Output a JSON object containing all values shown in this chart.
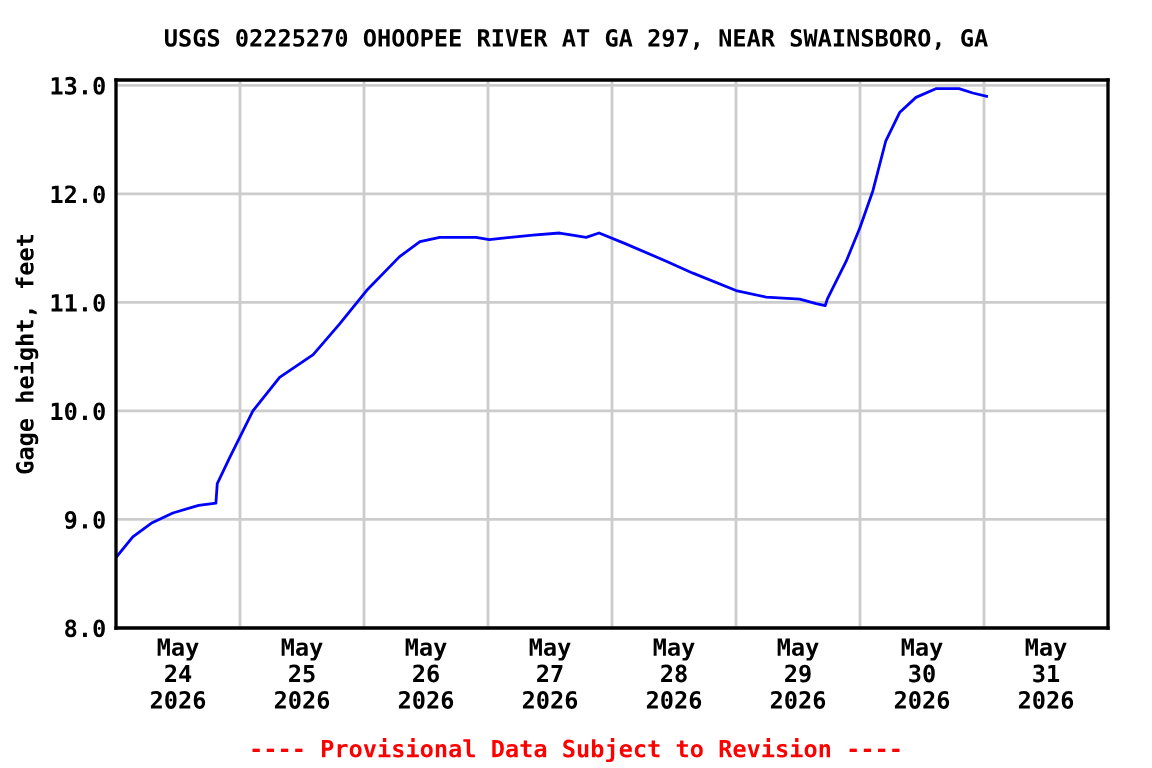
{
  "chart_data": {
    "type": "line",
    "title": "USGS 02225270 OHOOPEE RIVER AT GA 297, NEAR SWAINSBORO, GA",
    "ylabel": "Gage height, feet",
    "annotations": [
      "---- Provisional Data Subject to Revision ----"
    ],
    "x": [
      "2026-05-24T00:00",
      "2026-05-24T03:15",
      "2026-05-24T07:00",
      "2026-05-24T11:00",
      "2026-05-24T16:00",
      "2026-05-24T19:20",
      "2026-05-24T19:36",
      "2026-05-24T22:00",
      "2026-05-25T02:30",
      "2026-05-25T07:40",
      "2026-05-25T14:10",
      "2026-05-25T19:15",
      "2026-05-26T00:30",
      "2026-05-26T06:50",
      "2026-05-26T10:50",
      "2026-05-26T14:40",
      "2026-05-26T21:40",
      "2026-05-27T00:15",
      "2026-05-27T08:40",
      "2026-05-27T13:50",
      "2026-05-27T16:20",
      "2026-05-27T19:00",
      "2026-05-27T21:30",
      "2026-05-28T02:40",
      "2026-05-28T10:30",
      "2026-05-28T15:40",
      "2026-05-29T00:00",
      "2026-05-29T05:50",
      "2026-05-29T12:20",
      "2026-05-29T15:30",
      "2026-05-29T17:15",
      "2026-05-29T17:40",
      "2026-05-29T21:20",
      "2026-05-30T00:00",
      "2026-05-30T02:30",
      "2026-05-30T05:00",
      "2026-05-30T07:40",
      "2026-05-30T10:50",
      "2026-05-30T14:40",
      "2026-05-30T19:10",
      "2026-05-30T21:50",
      "2026-05-31T00:30"
    ],
    "series": [
      {
        "color": "#0000ff",
        "values": [
          8.65,
          8.84,
          8.97,
          9.06,
          9.13,
          9.15,
          9.33,
          9.57,
          10.0,
          10.31,
          10.52,
          10.8,
          11.11,
          11.42,
          11.56,
          11.6,
          11.6,
          11.58,
          11.62,
          11.64,
          11.62,
          11.6,
          11.64,
          11.54,
          11.38,
          11.27,
          11.11,
          11.05,
          11.03,
          10.99,
          10.97,
          11.03,
          11.38,
          11.69,
          12.03,
          12.49,
          12.75,
          12.89,
          12.97,
          12.97,
          12.93,
          12.9
        ]
      }
    ],
    "xlim": [
      "2026-05-24",
      "2026-06-01"
    ],
    "xticks": [
      {
        "value": "2026-05-24T12:00",
        "label": "May\n24\n2026"
      },
      {
        "value": "2026-05-25T00:00",
        "label": null
      },
      {
        "value": "2026-05-25T12:00",
        "label": "May\n25\n2026"
      },
      {
        "value": "2026-05-26T00:00",
        "label": null
      },
      {
        "value": "2026-05-26T12:00",
        "label": "May\n26\n2026"
      },
      {
        "value": "2026-05-27T00:00",
        "label": null
      },
      {
        "value": "2026-05-27T12:00",
        "label": "May\n27\n2026"
      },
      {
        "value": "2026-05-28T00:00",
        "label": null
      },
      {
        "value": "2026-05-28T12:00",
        "label": "May\n28\n2026"
      },
      {
        "value": "2026-05-29T00:00",
        "label": null
      },
      {
        "value": "2026-05-29T12:00",
        "label": "May\n29\n2026"
      },
      {
        "value": "2026-05-30T00:00",
        "label": null
      },
      {
        "value": "2026-05-30T12:00",
        "label": "May\n30\n2026"
      },
      {
        "value": "2026-05-31T00:00",
        "label": null
      },
      {
        "value": "2026-05-31T12:00",
        "label": "May\n31\n2026"
      }
    ],
    "ylim": [
      8,
      13.05
    ],
    "yticks": [
      {
        "value": 8,
        "label": "8.0"
      },
      {
        "value": 9,
        "label": "9.0"
      },
      {
        "value": 10,
        "label": "10.0"
      },
      {
        "value": 11,
        "label": "11.0"
      },
      {
        "value": 12,
        "label": "12.0"
      },
      {
        "value": 13,
        "label": "13.0"
      }
    ],
    "grid": true,
    "marker": "none",
    "line_style": "solid"
  }
}
